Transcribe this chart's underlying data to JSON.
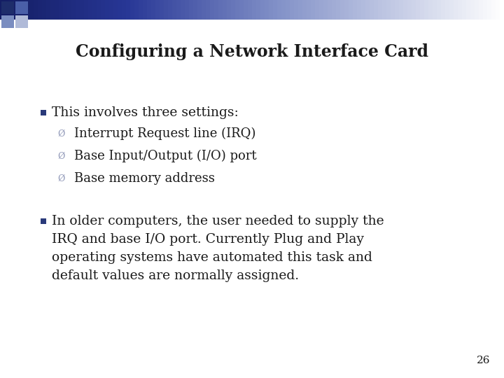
{
  "title": "Configuring a Network Interface Card",
  "background_color": "#ffffff",
  "title_color": "#1a1a1a",
  "title_fontsize": 17,
  "bullet_color": "#1a1a1a",
  "bullet_fontsize": 13.5,
  "sub_bullet_fontsize": 13,
  "page_number": "26",
  "bullet1": "This involves three settings:",
  "sub_bullets": [
    "Interrupt Request line (IRQ)",
    "Base Input/Output (I/O) port",
    "Base memory address"
  ],
  "bullet2_lines": [
    "In older computers, the user needed to supply the",
    "IRQ and base I/O port. Currently Plug and Play",
    "operating systems have automated this task and",
    "default values are normally assigned."
  ],
  "square_color_dark": "#1e2d6b",
  "square_color_mid1": "#4a5fa8",
  "square_color_mid2": "#7a8dc0",
  "square_color_light": "#b0bad8",
  "sub_bullet_color": "#9098b8",
  "main_bullet_color": "#2a3a7a"
}
